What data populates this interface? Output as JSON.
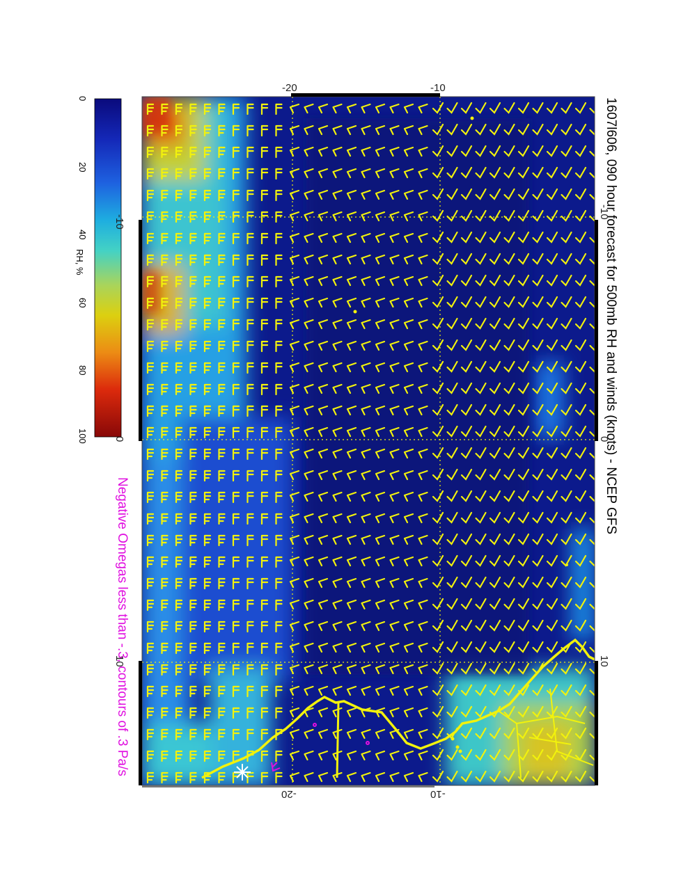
{
  "title": "1607l606, 090 hour forecast for 500mb RH and winds (knots) - NCEP GFS",
  "subtitle": "Negative Omegas less than -.3, contours of .3 Pa/s",
  "colorbar": {
    "label": "RH, %",
    "ticks": [
      "0",
      "20",
      "40",
      "60",
      "80",
      "100"
    ],
    "colors": [
      "#08107a",
      "#1030c8",
      "#1e72e6",
      "#20c4d8",
      "#8ed070",
      "#d8d018",
      "#e88c18",
      "#d82810",
      "#8a0c0c"
    ]
  },
  "map": {
    "lat_labels_top": [
      "-20",
      "-10"
    ],
    "lat_labels_bottom": [
      "-20",
      "-10"
    ],
    "lon_labels_left": [
      "-10",
      "0",
      "10"
    ],
    "lon_labels_right": [
      "-10",
      "0",
      "10"
    ],
    "barb_color": "#f2f20c",
    "coast_color": "#f2f20c",
    "omega_color": "#e010e0",
    "grid_color": "#f2f20c"
  }
}
